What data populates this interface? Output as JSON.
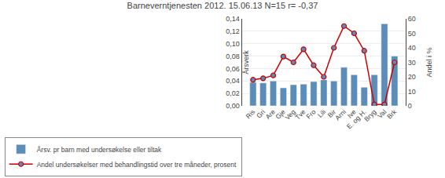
{
  "chart_data": {
    "type": "bar",
    "title": "Barneverntjenesten 2012. 15.06.13 N=15 r= -0,37",
    "categories": [
      "Ris",
      "Gri",
      "Are",
      "Gje",
      "Veg",
      "Tve",
      "Fro",
      "Lili",
      "Bir",
      "Arni",
      "Ive",
      "E. og H.",
      "Bryg",
      "Val",
      "Brk"
    ],
    "series": [
      {
        "name": "Årsv. pr barn med undersøkelse eller tiltak",
        "type": "bar",
        "color": "#5b8db8",
        "values": [
          0.038,
          0.037,
          0.04,
          0.029,
          0.034,
          0.035,
          0.039,
          0.042,
          0.04,
          0.062,
          0.05,
          0.03,
          0.05,
          0.132,
          0.08
        ]
      },
      {
        "name": "Andel undersøkelser med behandlingstid over tre måneder, prosent",
        "type": "line",
        "color": "#cc0000",
        "marker": "circle",
        "axis": "y2",
        "values": [
          18,
          19,
          21,
          34,
          30,
          39,
          28,
          20,
          40,
          55,
          50,
          38,
          1,
          1,
          30
        ]
      }
    ],
    "ylabel": "Årsverk",
    "y2label": "Andel i %",
    "ylim": [
      0,
      0.14
    ],
    "yticks": [
      {
        "value": 0.0,
        "label": "0,00"
      },
      {
        "value": 0.02,
        "label": "0,02"
      },
      {
        "value": 0.04,
        "label": "0,04"
      },
      {
        "value": 0.06,
        "label": "0,06"
      },
      {
        "value": 0.08,
        "label": "0,08"
      },
      {
        "value": 0.1,
        "label": "0,10"
      },
      {
        "value": 0.12,
        "label": "0,12"
      },
      {
        "value": 0.14,
        "label": "0,14"
      }
    ],
    "y2lim": [
      0,
      60
    ],
    "y2ticks": [
      0,
      10,
      20,
      30,
      40,
      50,
      60
    ],
    "grid": true,
    "legend": "lower left"
  }
}
